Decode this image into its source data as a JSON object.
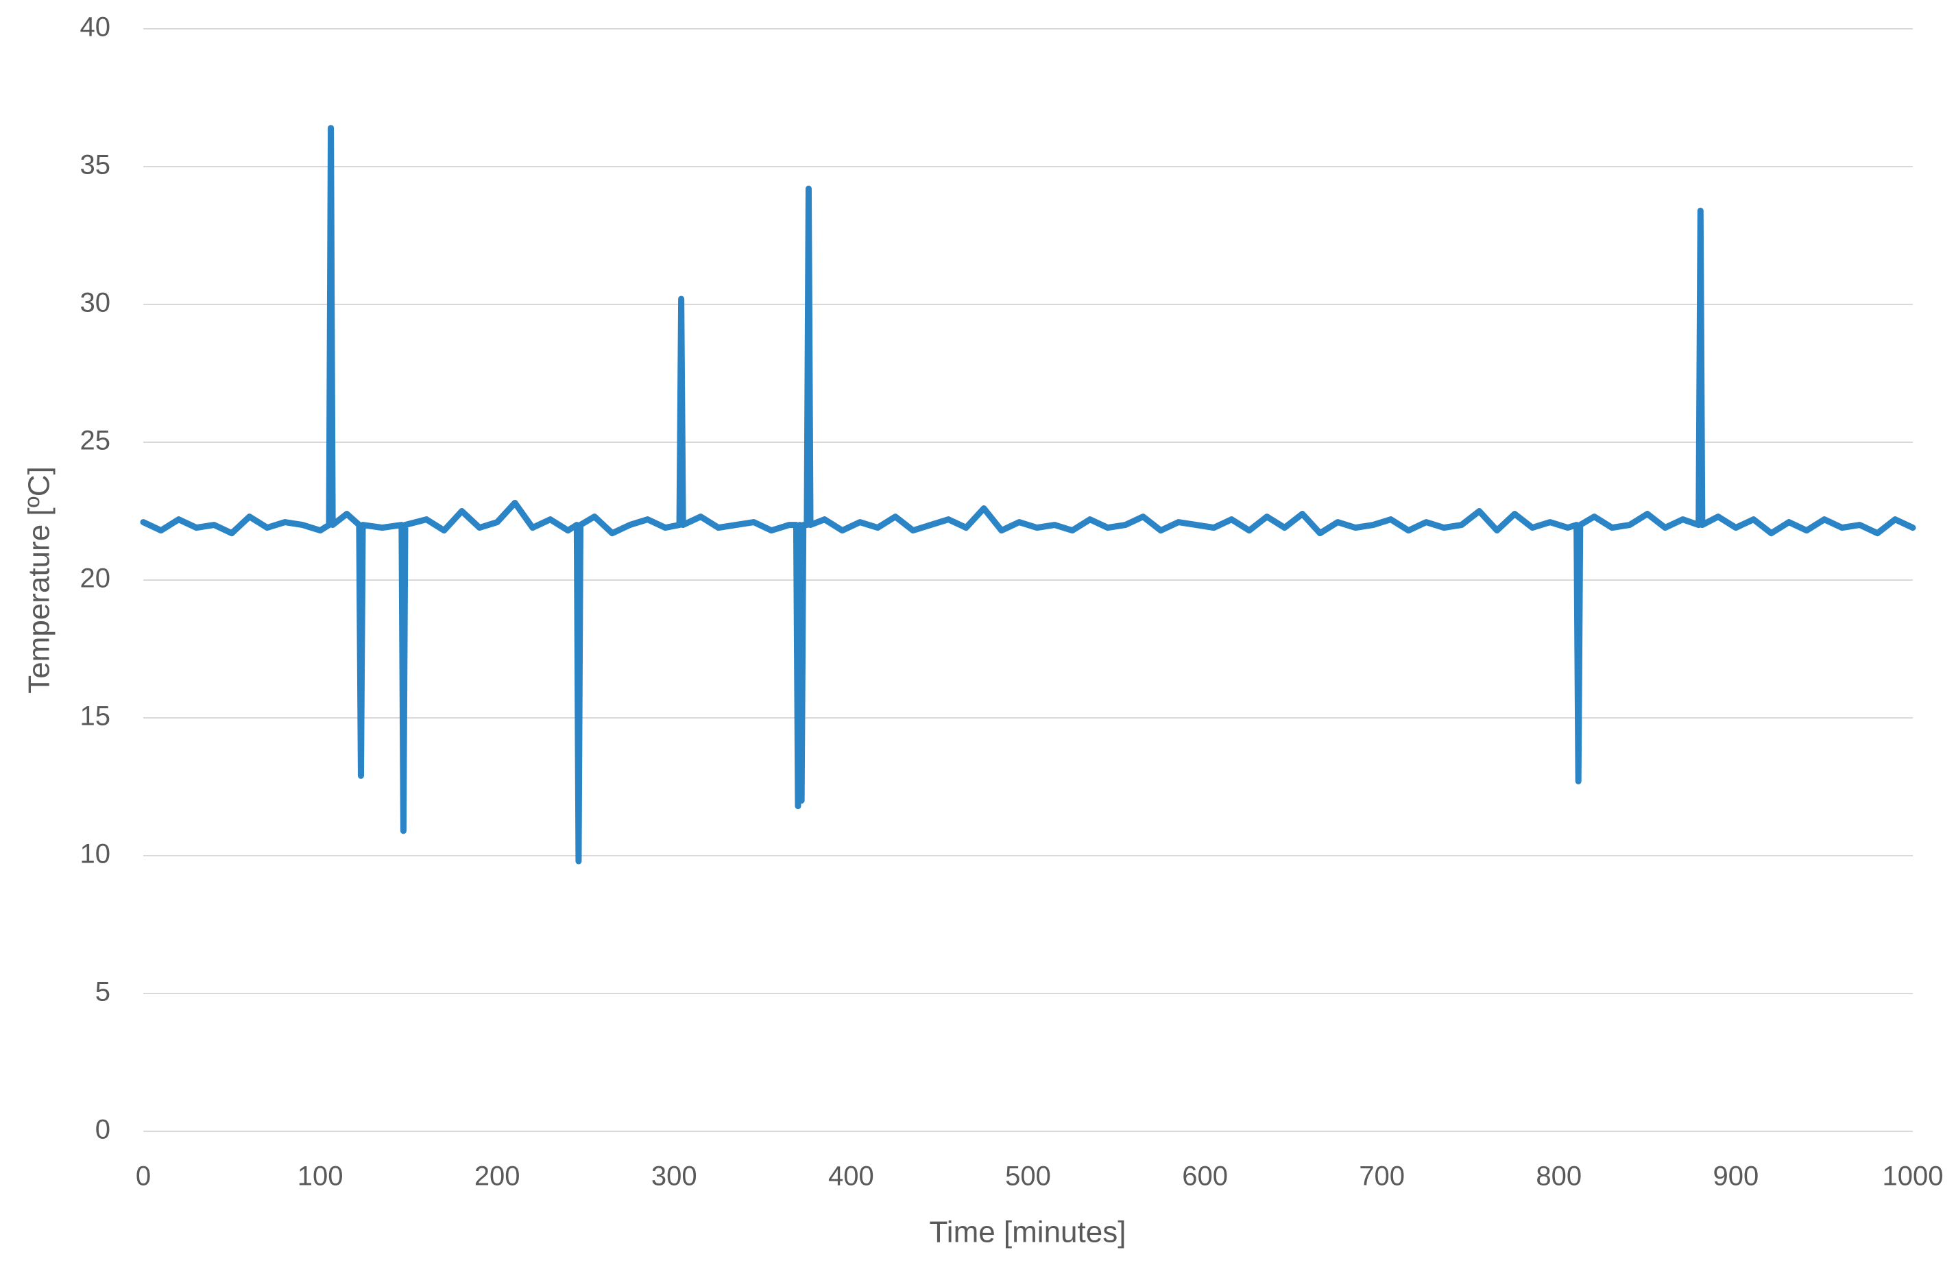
{
  "chart_data": {
    "type": "line",
    "xlabel": "Time [minutes]",
    "ylabel": "Temperature [ºC]",
    "x": [
      0,
      10,
      20,
      30,
      40,
      50,
      60,
      70,
      80,
      90,
      100,
      105,
      106,
      107,
      115,
      122,
      123,
      124,
      135,
      146,
      147,
      148,
      160,
      170,
      180,
      190,
      200,
      210,
      220,
      230,
      240,
      245,
      246,
      247,
      255,
      265,
      275,
      285,
      295,
      303,
      304,
      305,
      315,
      325,
      335,
      345,
      355,
      365,
      369,
      370,
      371,
      372,
      373,
      375,
      376,
      377,
      385,
      395,
      405,
      415,
      425,
      435,
      445,
      455,
      465,
      475,
      485,
      495,
      505,
      515,
      525,
      535,
      545,
      555,
      565,
      575,
      585,
      595,
      605,
      615,
      625,
      635,
      645,
      655,
      665,
      675,
      685,
      695,
      705,
      715,
      725,
      735,
      745,
      755,
      765,
      775,
      785,
      795,
      805,
      810,
      811,
      812,
      820,
      830,
      840,
      850,
      860,
      870,
      879,
      880,
      881,
      890,
      900,
      910,
      920,
      930,
      940,
      950,
      960,
      970,
      980,
      990,
      1000
    ],
    "values": [
      22.1,
      21.8,
      22.2,
      21.9,
      22.0,
      21.7,
      22.3,
      21.9,
      22.1,
      22.0,
      21.8,
      22.0,
      36.4,
      22.0,
      22.4,
      22.0,
      12.9,
      22.0,
      21.9,
      22.0,
      10.9,
      22.0,
      22.2,
      21.8,
      22.5,
      21.9,
      22.1,
      22.8,
      21.9,
      22.2,
      21.8,
      22.0,
      9.8,
      22.0,
      22.3,
      21.7,
      22.0,
      22.2,
      21.9,
      22.0,
      30.2,
      22.0,
      22.3,
      21.9,
      22.0,
      22.1,
      21.8,
      22.0,
      22.0,
      11.8,
      22.0,
      12.0,
      22.0,
      22.0,
      34.2,
      22.0,
      22.2,
      21.8,
      22.1,
      21.9,
      22.3,
      21.8,
      22.0,
      22.2,
      21.9,
      22.6,
      21.8,
      22.1,
      21.9,
      22.0,
      21.8,
      22.2,
      21.9,
      22.0,
      22.3,
      21.8,
      22.1,
      22.0,
      21.9,
      22.2,
      21.8,
      22.3,
      21.9,
      22.4,
      21.7,
      22.1,
      21.9,
      22.0,
      22.2,
      21.8,
      22.1,
      21.9,
      22.0,
      22.5,
      21.8,
      22.4,
      21.9,
      22.1,
      21.9,
      22.0,
      12.7,
      22.0,
      22.3,
      21.9,
      22.0,
      22.4,
      21.9,
      22.2,
      22.0,
      33.4,
      22.0,
      22.3,
      21.9,
      22.2,
      21.7,
      22.1,
      21.8,
      22.2,
      21.9,
      22.0,
      21.7,
      22.2,
      21.9
    ],
    "color": "#2a84c6",
    "xlim": [
      0,
      1000
    ],
    "xticks": [
      0,
      100,
      200,
      300,
      400,
      500,
      600,
      700,
      800,
      900,
      1000
    ],
    "ylim": [
      0,
      40
    ],
    "yticks": [
      0,
      5,
      10,
      15,
      20,
      25,
      30,
      35,
      40
    ],
    "grid": true
  }
}
